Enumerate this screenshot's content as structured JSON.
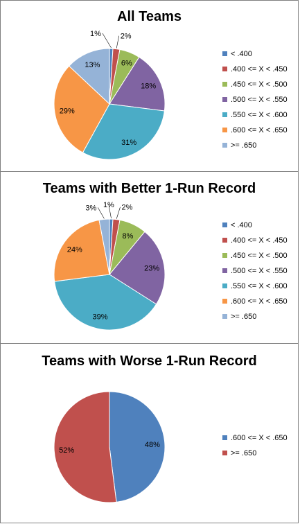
{
  "chart_data": [
    {
      "type": "pie",
      "title": "All Teams",
      "labels": [
        "< .400",
        ".400 <= X < .450",
        ".450 <= X < .500",
        ".500 <= X < .550",
        ".550 <= X < .600",
        ".600 <= X < .650",
        ">= .650"
      ],
      "values": [
        1,
        2,
        6,
        18,
        31,
        29,
        13
      ],
      "value_labels": [
        "1%",
        "2%",
        "6%",
        "18%",
        "31%",
        "29%",
        "13%"
      ],
      "colors": [
        "#4F81BD",
        "#C0504D",
        "#9BBB59",
        "#8064A2",
        "#4BACC6",
        "#F79646",
        "#95B3D7"
      ],
      "legend": "right"
    },
    {
      "type": "pie",
      "title": "Teams with Better 1-Run Record",
      "labels": [
        "< .400",
        ".400 <= X < .450",
        ".450 <= X < .500",
        ".500 <= X < .550",
        ".550 <= X < .600",
        ".600 <= X < .650",
        ">= .650"
      ],
      "values": [
        1,
        2,
        8,
        23,
        39,
        24,
        3
      ],
      "value_labels": [
        "1%",
        "2%",
        "8%",
        "23%",
        "39%",
        "24%",
        "3%"
      ],
      "colors": [
        "#4F81BD",
        "#C0504D",
        "#9BBB59",
        "#8064A2",
        "#4BACC6",
        "#F79646",
        "#95B3D7"
      ],
      "legend": "right"
    },
    {
      "type": "pie",
      "title": "Teams with Worse 1-Run Record",
      "labels": [
        ".600 <= X < .650",
        ">= .650"
      ],
      "values": [
        48,
        52
      ],
      "value_labels": [
        "48%",
        "52%"
      ],
      "colors": [
        "#4F81BD",
        "#C0504D"
      ],
      "legend": "right"
    }
  ]
}
